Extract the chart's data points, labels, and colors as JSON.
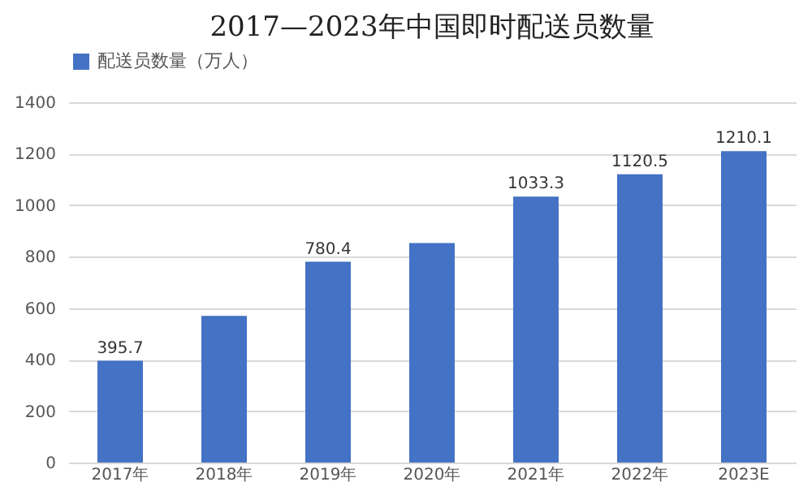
{
  "chart_data": {
    "type": "bar",
    "title": "2017—2023年中国即时配送员数量",
    "categories": [
      "2017年",
      "2018年",
      "2019年",
      "2020年",
      "2021年",
      "2022年",
      "2023E"
    ],
    "series": [
      {
        "name": "配送员数量（万人）",
        "color": "#4472c4",
        "values": [
          395.7,
          570,
          780.4,
          853,
          1033.3,
          1120.5,
          1210.1
        ],
        "value_labels": [
          "395.7",
          null,
          "780.4",
          null,
          "1033.3",
          "1120.5",
          "1210.1"
        ]
      }
    ],
    "ylim": [
      0,
      1400
    ],
    "yticks": [
      0,
      200,
      400,
      600,
      800,
      1000,
      1200,
      1400
    ],
    "grid": "y",
    "legend": "top"
  }
}
